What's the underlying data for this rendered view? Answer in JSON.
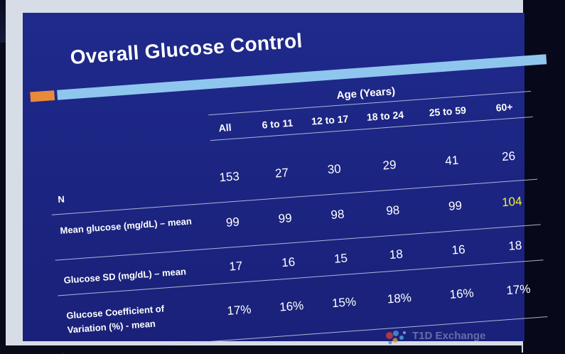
{
  "slide": {
    "title": "Overall Glucose Control",
    "group_header": "Age (Years)",
    "columns": [
      "All",
      "6 to 11",
      "12 to 17",
      "18 to 24",
      "25 to 59",
      "60+"
    ],
    "rows": [
      {
        "label": "N",
        "values": [
          "153",
          "27",
          "30",
          "29",
          "41",
          "26"
        ]
      },
      {
        "label": "Mean glucose (mg/dL) – mean",
        "values": [
          "99",
          "99",
          "98",
          "98",
          "99",
          "104"
        ]
      },
      {
        "label": "Glucose SD (mg/dL) – mean",
        "values": [
          "17",
          "16",
          "15",
          "18",
          "16",
          "18"
        ]
      },
      {
        "label": "Glucose Coefficient of Variation (%) - mean",
        "values": [
          "17%",
          "16%",
          "15%",
          "18%",
          "16%",
          "17%"
        ]
      }
    ],
    "highlight_color": "#f1ef3a",
    "accent_colors": {
      "orange": "#e88a3a",
      "blue": "#8fc6ee",
      "background": "#1f2a8c"
    },
    "logo_text": "T1D Exchange"
  }
}
